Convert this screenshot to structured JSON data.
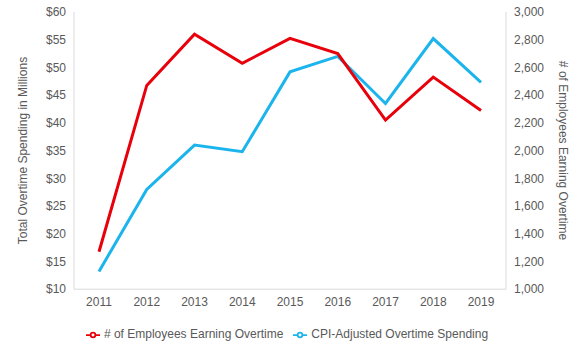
{
  "chart_data": {
    "type": "line",
    "categories": [
      "2011",
      "2012",
      "2013",
      "2014",
      "2015",
      "2016",
      "2017",
      "2018",
      "2019"
    ],
    "series": [
      {
        "name": "CPI-Adjusted Overtime Spending",
        "color": "#1cb4ec",
        "values": [
          13.2,
          28,
          36,
          34.8,
          49.2,
          52,
          43.5,
          55.2,
          47.3
        ]
      },
      {
        "name": "# of Employees Earning Overtime",
        "color": "#e8000b",
        "axis": "y2",
        "values": [
          1270,
          2470,
          2840,
          2630,
          2810,
          2700,
          2220,
          2530,
          2290
        ]
      }
    ],
    "ylabel": "Total Overtime Spending in Millions",
    "y2label": "# of Employees Earning Overtime",
    "ylim": [
      10,
      60
    ],
    "yticks": [
      {
        "value": 10,
        "label": "$10"
      },
      {
        "value": 15,
        "label": "$15"
      },
      {
        "value": 20,
        "label": "$20"
      },
      {
        "value": 25,
        "label": "$25"
      },
      {
        "value": 30,
        "label": "$30"
      },
      {
        "value": 35,
        "label": "$35"
      },
      {
        "value": 40,
        "label": "$40"
      },
      {
        "value": 45,
        "label": "$45"
      },
      {
        "value": 50,
        "label": "$50"
      },
      {
        "value": 55,
        "label": "$55"
      },
      {
        "value": 60,
        "label": "$60"
      }
    ],
    "y2lim": [
      1000,
      3000
    ],
    "y2ticks": [
      {
        "value": 1000,
        "label": "1,000"
      },
      {
        "value": 1200,
        "label": "1,200"
      },
      {
        "value": 1400,
        "label": "1,400"
      },
      {
        "value": 1600,
        "label": "1,600"
      },
      {
        "value": 1800,
        "label": "1,800"
      },
      {
        "value": 2000,
        "label": "2,000"
      },
      {
        "value": 2200,
        "label": "2,200"
      },
      {
        "value": 2400,
        "label": "2,400"
      },
      {
        "value": 2600,
        "label": "2,600"
      },
      {
        "value": 2800,
        "label": "2,800"
      },
      {
        "value": 3000,
        "label": "3,000"
      }
    ],
    "grid": false,
    "legend": "bottom"
  }
}
